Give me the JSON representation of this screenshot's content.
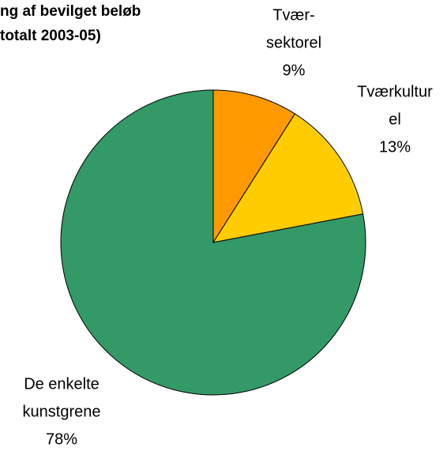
{
  "chart_data": {
    "type": "pie",
    "title": [
      "ng af bevilget beløb",
      "totalt 2003-05)"
    ],
    "labels": [
      [
        "Tvær-",
        "sektorel"
      ],
      [
        "Tværkultur",
        "el"
      ],
      [
        "De enkelte",
        "kunstgrene"
      ]
    ],
    "values": [
      9,
      13,
      78
    ],
    "value_labels": [
      "9%",
      "13%",
      "78%"
    ],
    "colors": [
      "#ff9900",
      "#ffcc00",
      "#339966"
    ]
  }
}
